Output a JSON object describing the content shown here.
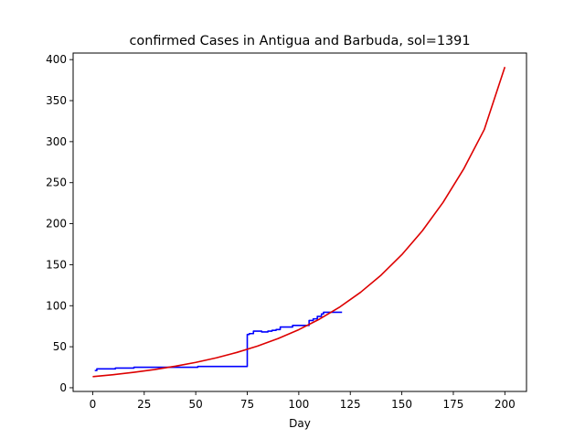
{
  "chart_data": {
    "type": "line",
    "title": "confirmed Cases in Antigua and Barbuda, sol=1391",
    "xlabel": "Day",
    "ylabel": "",
    "xlim": [
      -9.5,
      210.5
    ],
    "ylim": [
      -4.5,
      408
    ],
    "xticks": [
      0,
      25,
      50,
      75,
      100,
      125,
      150,
      175,
      200
    ],
    "yticks": [
      0,
      50,
      100,
      150,
      200,
      250,
      300,
      350,
      400
    ],
    "grid": false,
    "legend": "none",
    "series": [
      {
        "color": "#0000ff",
        "x": [
          1,
          2,
          2,
          11,
          11,
          20,
          20,
          51,
          51,
          75,
          75,
          76,
          76,
          78,
          78,
          82,
          82,
          85,
          85,
          87,
          87,
          89,
          89,
          91,
          91,
          97,
          97,
          105,
          105,
          107,
          107,
          109,
          109,
          111,
          111,
          112,
          112,
          121
        ],
        "y": [
          21,
          21,
          23,
          23,
          24,
          24,
          25,
          25,
          26,
          26,
          65,
          65,
          66,
          66,
          69,
          69,
          68,
          68,
          69,
          69,
          70,
          70,
          71,
          71,
          74,
          74,
          76,
          76,
          82,
          82,
          84,
          84,
          87,
          87,
          90,
          90,
          92,
          92
        ]
      },
      {
        "color": "#dd0000",
        "x": [
          0,
          10,
          20,
          30,
          40,
          50,
          60,
          70,
          80,
          90,
          100,
          110,
          120,
          130,
          140,
          150,
          160,
          170,
          180,
          190,
          200
        ],
        "y": [
          13.5,
          15.9,
          18.8,
          22.2,
          26.2,
          30.9,
          36.5,
          43.1,
          50.8,
          60.0,
          70.8,
          83.6,
          98.6,
          116.4,
          137.4,
          162.2,
          191.4,
          225.9,
          266.6,
          314.7,
          391.0
        ]
      }
    ]
  }
}
